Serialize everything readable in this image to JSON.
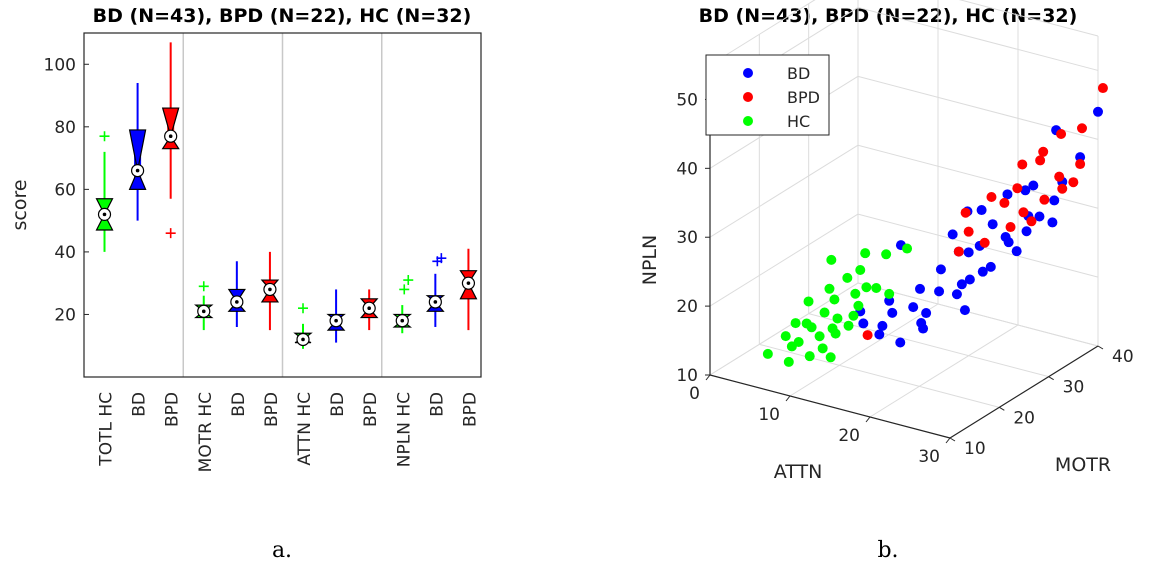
{
  "chart_data": [
    {
      "type": "box",
      "title": "BD (N=43), BPD (N=22), HC (N=32)",
      "ylabel": "score",
      "ylim": [
        0,
        110
      ],
      "yticks": [
        20,
        40,
        60,
        80,
        100
      ],
      "caption": "a.",
      "groups": [
        "TOTL",
        "MOTR",
        "ATTN",
        "NPLN"
      ],
      "labels": [
        [
          "TOTL HC",
          "BD",
          "BPD"
        ],
        [
          "MOTR HC",
          "BD",
          "BPD"
        ],
        [
          "ATTN HC",
          "BD",
          "BPD"
        ],
        [
          "NPLN HC",
          "BD",
          "BPD"
        ]
      ],
      "colors": {
        "HC": "#00ff00",
        "BD": "#0000ff",
        "BPD": "#ff0000"
      },
      "boxes": [
        {
          "cls": "HC",
          "wlo": 40,
          "q1": 47,
          "med": 52,
          "q3": 57,
          "whi": 72,
          "out": [
            77
          ]
        },
        {
          "cls": "BD",
          "wlo": 50,
          "q1": 60,
          "med": 66,
          "q3": 79,
          "whi": 94,
          "out": []
        },
        {
          "cls": "BPD",
          "wlo": 57,
          "q1": 73,
          "med": 77,
          "q3": 86,
          "whi": 107,
          "out": [
            46
          ]
        },
        {
          "cls": "HC",
          "wlo": 15,
          "q1": 19,
          "med": 21,
          "q3": 23,
          "whi": 26,
          "out": [
            29
          ]
        },
        {
          "cls": "BD",
          "wlo": 16,
          "q1": 21,
          "med": 24,
          "q3": 28,
          "whi": 37,
          "out": []
        },
        {
          "cls": "BPD",
          "wlo": 15,
          "q1": 24,
          "med": 28,
          "q3": 31,
          "whi": 40,
          "out": []
        },
        {
          "cls": "HC",
          "wlo": 9,
          "q1": 11,
          "med": 12,
          "q3": 14,
          "whi": 17,
          "out": [
            22
          ]
        },
        {
          "cls": "BD",
          "wlo": 11,
          "q1": 15,
          "med": 18,
          "q3": 20,
          "whi": 28,
          "out": []
        },
        {
          "cls": "BPD",
          "wlo": 15,
          "q1": 19,
          "med": 22,
          "q3": 25,
          "whi": 28,
          "out": []
        },
        {
          "cls": "HC",
          "wlo": 14,
          "q1": 16,
          "med": 18,
          "q3": 20,
          "whi": 23,
          "out": [
            28,
            31
          ]
        },
        {
          "cls": "BD",
          "wlo": 16,
          "q1": 21,
          "med": 24,
          "q3": 26,
          "whi": 33,
          "out": [
            37,
            38
          ]
        },
        {
          "cls": "BPD",
          "wlo": 15,
          "q1": 25,
          "med": 30,
          "q3": 34,
          "whi": 41,
          "out": []
        }
      ]
    },
    {
      "type": "scatter3d",
      "title": "BD (N=43), BPD (N=22), HC (N=32)",
      "xlabel": "ATTN",
      "ylabel": "MOTR",
      "zlabel": "NPLN",
      "xlim": [
        0,
        30
      ],
      "ylim": [
        10,
        40
      ],
      "zlim": [
        10,
        55
      ],
      "xticks": [
        0,
        10,
        20,
        30
      ],
      "yticks": [
        10,
        20,
        30,
        40
      ],
      "zticks": [
        10,
        20,
        30,
        40,
        50
      ],
      "caption": "b.",
      "legend": {
        "position": "top-left",
        "entries": [
          "BD",
          "BPD",
          "HC"
        ]
      },
      "series": [
        {
          "name": "BD",
          "color": "#0000ff",
          "points": [
            [
              13,
              20,
              17
            ],
            [
              19,
              22,
              18
            ],
            [
              18,
              24,
              16
            ],
            [
              21,
              26,
              21
            ],
            [
              17,
              21,
              15
            ],
            [
              24,
              28,
              25
            ],
            [
              16,
              19,
              18
            ],
            [
              20,
              24,
              22
            ],
            [
              22,
              27,
              23
            ],
            [
              18,
              22,
              20
            ],
            [
              15,
              20,
              16
            ],
            [
              25,
              30,
              28
            ],
            [
              23,
              30,
              30
            ],
            [
              26,
              32,
              29
            ],
            [
              24,
              35,
              33
            ],
            [
              27,
              33,
              31
            ],
            [
              22,
              29,
              27
            ],
            [
              19,
              26,
              24
            ],
            [
              20,
              28,
              26
            ],
            [
              28,
              36,
              35
            ],
            [
              17,
              25,
              21
            ],
            [
              21,
              31,
              31
            ],
            [
              23,
              33,
              33
            ],
            [
              25,
              35,
              34
            ],
            [
              29,
              38,
              38
            ],
            [
              26,
              38,
              41
            ],
            [
              24,
              31,
              28
            ],
            [
              18,
              30,
              27
            ],
            [
              15,
              22,
              20
            ],
            [
              20,
              30,
              25
            ],
            [
              22,
              26,
              19
            ],
            [
              25,
              34,
              30
            ],
            [
              27,
              36,
              32
            ],
            [
              30,
              40,
              44
            ],
            [
              28,
              34,
              30
            ],
            [
              19,
              23,
              19
            ],
            [
              16,
              21,
              19
            ],
            [
              21,
              27,
              22
            ],
            [
              23,
              28,
              24
            ],
            [
              14,
              26,
              26
            ],
            [
              12,
              21,
              18
            ],
            [
              26,
              30,
              27
            ],
            [
              18,
              33,
              29
            ]
          ]
        },
        {
          "name": "BPD",
          "color": "#ff0000",
          "points": [
            [
              28,
              40,
              41
            ],
            [
              30,
              35,
              36
            ],
            [
              25,
              37,
              38
            ],
            [
              27,
              34,
              33
            ],
            [
              23,
              36,
              36
            ],
            [
              21,
              33,
              32
            ],
            [
              26,
              39,
              40
            ],
            [
              24,
              32,
              29
            ],
            [
              20,
              30,
              28
            ],
            [
              22,
              34,
              31
            ],
            [
              29,
              38,
              37
            ],
            [
              25,
              33,
              31
            ],
            [
              19,
              31,
              30
            ],
            [
              27,
              37,
              35
            ],
            [
              23,
              35,
              33
            ],
            [
              30,
              41,
              47
            ],
            [
              16,
              16,
              18
            ],
            [
              26,
              33,
              30
            ],
            [
              24,
              38,
              36
            ],
            [
              20,
              28,
              26
            ],
            [
              28,
              36,
              34
            ],
            [
              22,
              30,
              27
            ]
          ]
        },
        {
          "name": "HC",
          "color": "#00ff00",
          "points": [
            [
              7,
              14,
              16
            ],
            [
              9,
              16,
              17
            ],
            [
              11,
              18,
              18
            ],
            [
              8,
              15,
              15
            ],
            [
              10,
              17,
              19
            ],
            [
              12,
              16,
              17
            ],
            [
              6,
              12,
              14
            ],
            [
              13,
              18,
              19
            ],
            [
              10,
              19,
              20
            ],
            [
              8,
              13,
              13
            ],
            [
              12,
              20,
              21
            ],
            [
              11,
              17,
              17
            ],
            [
              9,
              15,
              18
            ],
            [
              14,
              21,
              22
            ],
            [
              7,
              16,
              17
            ],
            [
              10,
              18,
              22
            ],
            [
              13,
              19,
              20
            ],
            [
              12,
              21,
              24
            ],
            [
              9,
              12,
              16
            ],
            [
              11,
              15,
              15
            ],
            [
              8,
              17,
              20
            ],
            [
              14,
              19,
              23
            ],
            [
              15,
              22,
              21
            ],
            [
              10,
              16,
              16
            ],
            [
              12,
              22,
              26
            ],
            [
              13,
              17,
              18
            ],
            [
              16,
              24,
              27
            ],
            [
              11,
              20,
              23
            ],
            [
              9,
              20,
              25
            ],
            [
              14,
              23,
              26
            ],
            [
              12,
              15,
              14
            ],
            [
              10,
              14,
              14
            ]
          ]
        }
      ]
    }
  ]
}
